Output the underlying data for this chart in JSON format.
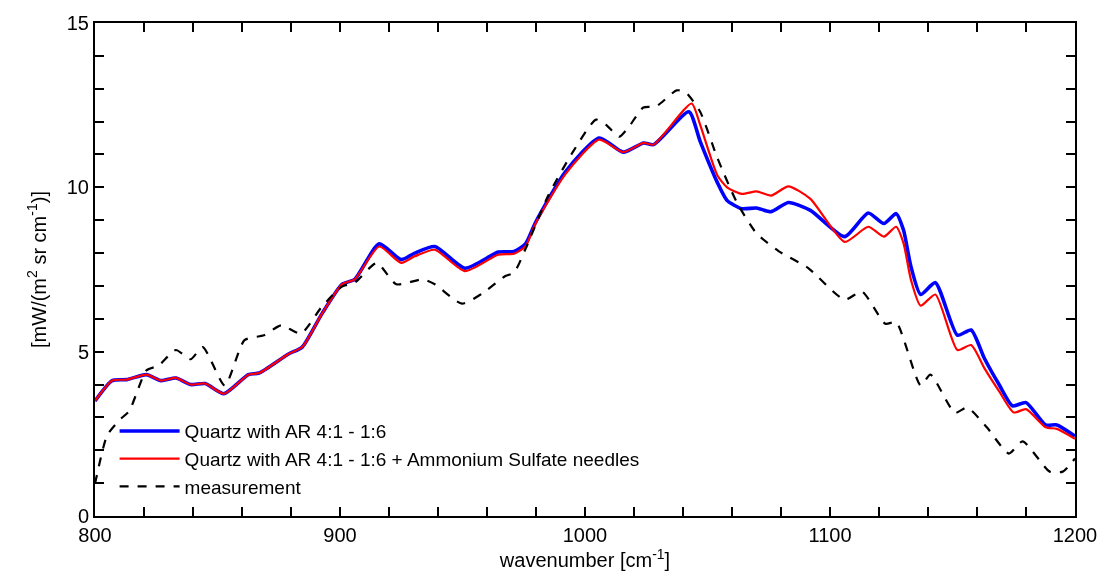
{
  "chart_data": {
    "type": "line",
    "xlabel": "wavenumber [cm$^{-1}$]",
    "ylabel": "[mW/(m$^{2}$ sr cm$^{-1}$)]",
    "xlim": [
      800,
      1200
    ],
    "ylim": [
      0,
      15
    ],
    "xticks": [
      800,
      {
        "value": 820,
        "label": null
      },
      {
        "value": 840,
        "label": null
      },
      {
        "value": 860,
        "label": null
      },
      {
        "value": 880,
        "label": null
      },
      900,
      {
        "value": 920,
        "label": null
      },
      {
        "value": 940,
        "label": null
      },
      {
        "value": 960,
        "label": null
      },
      {
        "value": 980,
        "label": null
      },
      1000,
      {
        "value": 1020,
        "label": null
      },
      {
        "value": 1040,
        "label": null
      },
      {
        "value": 1060,
        "label": null
      },
      {
        "value": 1080,
        "label": null
      },
      1100,
      {
        "value": 1120,
        "label": null
      },
      {
        "value": 1140,
        "label": null
      },
      {
        "value": 1160,
        "label": null
      },
      {
        "value": 1180,
        "label": null
      },
      1200
    ],
    "yticks": [
      0,
      {
        "value": 1,
        "label": null
      },
      {
        "value": 2,
        "label": null
      },
      {
        "value": 3,
        "label": null
      },
      {
        "value": 4,
        "label": null
      },
      5,
      {
        "value": 6,
        "label": null
      },
      {
        "value": 7,
        "label": null
      },
      {
        "value": 8,
        "label": null
      },
      {
        "value": 9,
        "label": null
      },
      10,
      {
        "value": 11,
        "label": null
      },
      {
        "value": 12,
        "label": null
      },
      {
        "value": 13,
        "label": null
      },
      {
        "value": 14,
        "label": null
      },
      15
    ],
    "legend": "bottom left",
    "marker": "none",
    "series": [
      {
        "name": "Quartz with AR 4:1 - 1:6",
        "color": "#0000ff",
        "line_style": "solid",
        "x": [
          800,
          807,
          813,
          821,
          827,
          833,
          839,
          845,
          852.6,
          862.6,
          867,
          879,
          884.6,
          892.6,
          900.8,
          906,
          916,
          925,
          930.5,
          938.7,
          951,
          964.6,
          971,
          975.7,
          979.8,
          992,
          1005.8,
          1015.6,
          1023.9,
          1028,
          1042.4,
          1047,
          1054,
          1058,
          1064,
          1070,
          1076,
          1083,
          1092,
          1106,
          1115.6,
          1122,
          1127,
          1130,
          1133,
          1137,
          1143,
          1152,
          1157.6,
          1163,
          1169,
          1174.5,
          1180,
          1188,
          1192.6,
          1200
        ],
        "values": [
          3.5,
          4.12,
          4.15,
          4.3,
          4.12,
          4.2,
          4.0,
          4.03,
          3.72,
          4.3,
          4.35,
          4.93,
          5.14,
          6.15,
          7.05,
          7.2,
          8.28,
          7.8,
          8.0,
          8.2,
          7.54,
          8.03,
          8.05,
          8.28,
          8.93,
          10.47,
          11.5,
          11.07,
          11.35,
          11.3,
          12.3,
          11.4,
          10.15,
          9.6,
          9.35,
          9.37,
          9.26,
          9.54,
          9.3,
          8.5,
          9.22,
          8.9,
          9.2,
          8.7,
          7.6,
          6.74,
          7.1,
          5.5,
          5.66,
          4.8,
          4.0,
          3.35,
          3.45,
          2.77,
          2.77,
          2.43
        ]
      },
      {
        "name": "Quartz with AR 4:1 - 1:6 + Ammonium Sulfate needles",
        "color": "#ff0000",
        "line_style": "solid",
        "x": [
          800,
          807,
          813,
          821,
          827,
          833,
          839,
          845,
          852.6,
          862.6,
          867,
          879,
          884.6,
          892.6,
          900.8,
          906,
          916,
          925,
          930.5,
          938.7,
          951,
          964.6,
          971,
          975.7,
          979.8,
          992,
          1005.8,
          1015.6,
          1023.9,
          1028,
          1043.5,
          1047,
          1054,
          1058,
          1064,
          1070,
          1076,
          1083,
          1092,
          1106,
          1115.6,
          1122,
          1127,
          1130,
          1133,
          1137,
          1143,
          1152,
          1157.6,
          1163,
          1169,
          1175,
          1180,
          1188,
          1192.6,
          1200
        ],
        "values": [
          3.5,
          4.12,
          4.15,
          4.3,
          4.12,
          4.2,
          4.0,
          4.03,
          3.72,
          4.3,
          4.35,
          4.93,
          5.14,
          6.15,
          7.05,
          7.2,
          8.2,
          7.7,
          7.9,
          8.1,
          7.45,
          7.95,
          7.98,
          8.2,
          8.9,
          10.4,
          11.45,
          11.07,
          11.35,
          11.3,
          12.55,
          11.9,
          10.37,
          10.0,
          9.8,
          9.88,
          9.75,
          10.03,
          9.65,
          8.34,
          8.8,
          8.5,
          8.8,
          8.3,
          7.2,
          6.4,
          6.74,
          5.05,
          5.2,
          4.5,
          3.8,
          3.15,
          3.25,
          2.7,
          2.65,
          2.35
        ]
      },
      {
        "name": "measurement",
        "color": "#000000",
        "line_style": "dashed",
        "x": [
          800,
          805,
          810,
          814,
          821,
          826,
          833,
          839,
          844,
          853,
          861,
          869,
          876,
          884,
          892.6,
          900.8,
          906,
          915,
          923,
          933.7,
          938.7,
          949.8,
          958,
          967.5,
          971,
          975.7,
          985,
          995,
          1004.5,
          1008.6,
          1014,
          1018,
          1023.8,
          1029,
          1037.4,
          1041,
          1047,
          1054,
          1062,
          1070,
          1079,
          1091,
          1106,
          1113,
          1122.6,
          1127,
          1137,
          1141,
          1151,
          1156,
          1164,
          1173,
          1178.6,
          1189.7,
          1195,
          1200
        ],
        "values": [
          0.98,
          2.46,
          2.92,
          3.2,
          4.43,
          4.58,
          5.05,
          4.77,
          5.14,
          3.97,
          5.35,
          5.5,
          5.8,
          5.55,
          6.37,
          6.98,
          7.1,
          7.7,
          7.05,
          7.2,
          7.05,
          6.46,
          6.77,
          7.3,
          7.4,
          8.12,
          9.75,
          11.07,
          12.06,
          11.9,
          11.54,
          11.85,
          12.43,
          12.46,
          12.95,
          12.9,
          12.3,
          10.9,
          9.54,
          8.6,
          8.06,
          7.55,
          6.58,
          6.83,
          5.85,
          5.9,
          3.97,
          4.3,
          3.14,
          3.3,
          2.7,
          1.9,
          2.27,
          1.35,
          1.35,
          1.75
        ]
      }
    ]
  }
}
